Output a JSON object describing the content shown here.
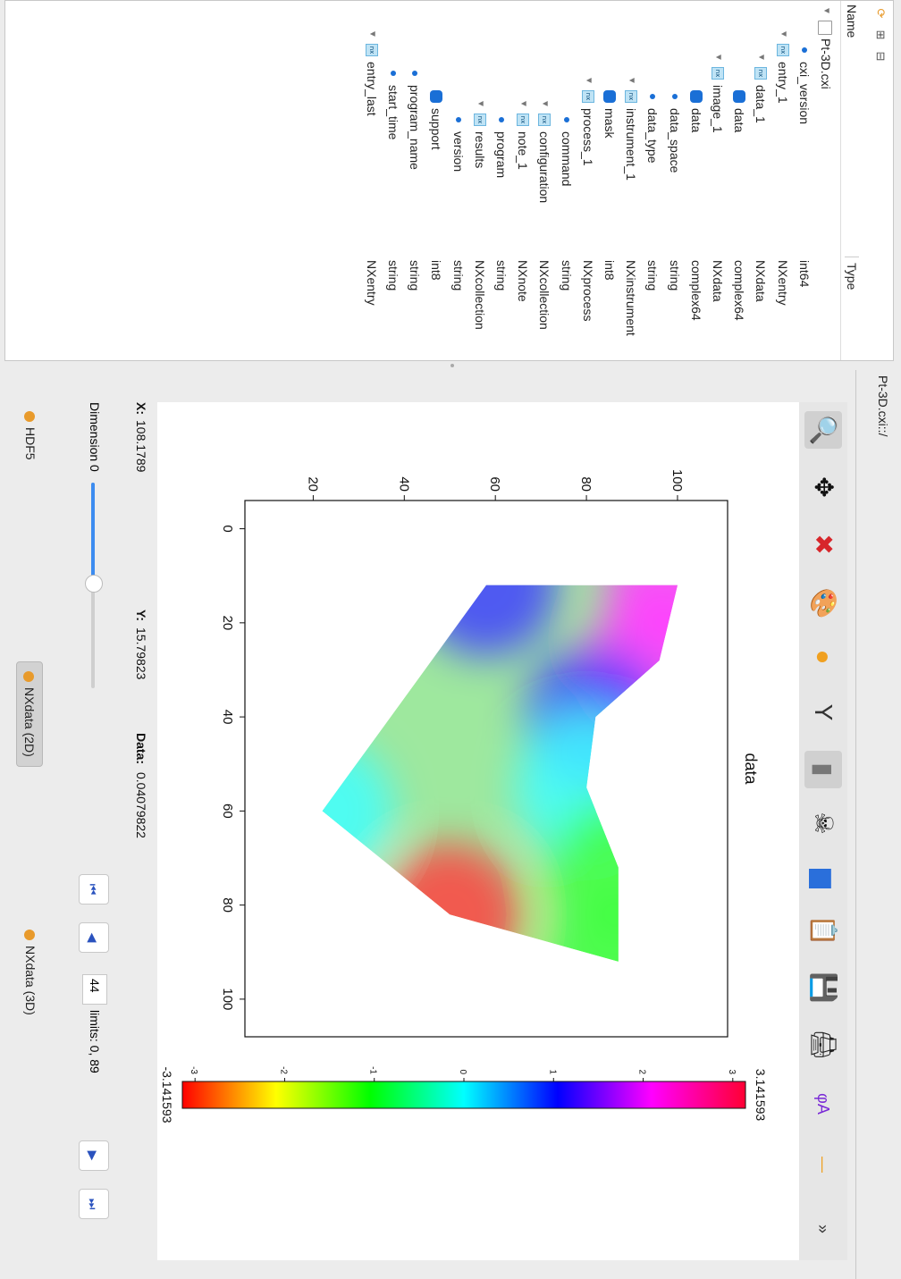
{
  "app": {
    "path_label": "Pt-3D.cxi::/"
  },
  "tree": {
    "tools": [
      "⟳",
      "⊞",
      "⊟"
    ],
    "columns": {
      "name": "Name",
      "type": "Type"
    },
    "items": [
      {
        "name": "Pt-3D.cxi",
        "type": "",
        "icon": "file-icon",
        "depth": 0,
        "toggle": "▼"
      },
      {
        "name": "cxi_version",
        "type": "int64",
        "icon": "attribute-icon",
        "depth": 1,
        "toggle": ""
      },
      {
        "name": "entry_1",
        "type": "NXentry",
        "icon": "nx-group-icon",
        "depth": 1,
        "toggle": "▼"
      },
      {
        "name": "data_1",
        "type": "NXdata",
        "icon": "nx-group-icon",
        "depth": 2,
        "toggle": "▼"
      },
      {
        "name": "data",
        "type": "complex64",
        "icon": "dataset-icon",
        "depth": 3,
        "toggle": ""
      },
      {
        "name": "image_1",
        "type": "NXdata",
        "icon": "nx-group-icon",
        "depth": 2,
        "toggle": "▼"
      },
      {
        "name": "data",
        "type": "complex64",
        "icon": "dataset-icon",
        "depth": 3,
        "toggle": ""
      },
      {
        "name": "data_space",
        "type": "string",
        "icon": "attribute-icon",
        "depth": 3,
        "toggle": ""
      },
      {
        "name": "data_type",
        "type": "string",
        "icon": "attribute-icon",
        "depth": 3,
        "toggle": ""
      },
      {
        "name": "instrument_1",
        "type": "NXinstrument",
        "icon": "nx-group-icon",
        "depth": 3,
        "toggle": "▼"
      },
      {
        "name": "mask",
        "type": "int8",
        "icon": "dataset-icon",
        "depth": 3,
        "toggle": ""
      },
      {
        "name": "process_1",
        "type": "NXprocess",
        "icon": "nx-group-icon",
        "depth": 3,
        "toggle": "▼"
      },
      {
        "name": "command",
        "type": "string",
        "icon": "attribute-icon",
        "depth": 4,
        "toggle": ""
      },
      {
        "name": "configuration",
        "type": "NXcollection",
        "icon": "nx-group-icon",
        "depth": 4,
        "toggle": "▼"
      },
      {
        "name": "note_1",
        "type": "NXnote",
        "icon": "nx-group-icon",
        "depth": 4,
        "toggle": "▼"
      },
      {
        "name": "program",
        "type": "string",
        "icon": "attribute-icon",
        "depth": 4,
        "toggle": ""
      },
      {
        "name": "results",
        "type": "NXcollection",
        "icon": "nx-group-icon",
        "depth": 4,
        "toggle": "▼"
      },
      {
        "name": "version",
        "type": "string",
        "icon": "attribute-icon",
        "depth": 4,
        "toggle": ""
      },
      {
        "name": "support",
        "type": "int8",
        "icon": "dataset-icon",
        "depth": 3,
        "toggle": ""
      },
      {
        "name": "program_name",
        "type": "string",
        "icon": "attribute-icon",
        "depth": 2,
        "toggle": ""
      },
      {
        "name": "start_time",
        "type": "string",
        "icon": "attribute-icon",
        "depth": 2,
        "toggle": ""
      },
      {
        "name": "entry_last",
        "type": "NXentry",
        "icon": "nx-group-icon",
        "depth": 1,
        "toggle": "▼"
      }
    ]
  },
  "toolbar": {
    "items": [
      {
        "name": "zoom-icon",
        "glyph": "🔍"
      },
      {
        "name": "pan-icon",
        "glyph": "✥"
      },
      {
        "name": "reset-zoom-icon",
        "glyph": "✖"
      },
      {
        "name": "colormap-icon",
        "glyph": "🎨"
      },
      {
        "name": "aspect-ratio-icon",
        "glyph": "●"
      },
      {
        "name": "y-axis-icon",
        "glyph": "Y"
      },
      {
        "name": "colorbar-toggle-icon",
        "glyph": "▮"
      },
      {
        "name": "mask-icon",
        "glyph": "☠"
      },
      {
        "name": "histogram-icon",
        "glyph": "▆"
      },
      {
        "name": "copy-icon",
        "glyph": "📋"
      },
      {
        "name": "save-icon",
        "glyph": "💾"
      },
      {
        "name": "print-icon",
        "glyph": "🖨"
      },
      {
        "name": "complex-mode-icon",
        "glyph": "φA"
      },
      {
        "name": "profile-icon",
        "glyph": "—"
      },
      {
        "name": "more-icon",
        "glyph": "»"
      }
    ]
  },
  "chart_data": {
    "type": "heatmap",
    "title": "data",
    "xlabel": "",
    "ylabel": "",
    "xlim": [
      -6,
      108
    ],
    "ylim": [
      5,
      111
    ],
    "x_ticks": [
      0,
      20,
      40,
      60,
      80,
      100
    ],
    "y_ticks": [
      20,
      40,
      60,
      80,
      100
    ],
    "grid": false,
    "colormap": "hsv (phase)",
    "colorbar": {
      "min_label": "-3.141593",
      "max_label": "3.141593",
      "ticks": [
        "-3",
        "-2",
        "-1",
        "0",
        "1",
        "2",
        "3"
      ],
      "colors": [
        "#ff0000",
        "#ffff00",
        "#00ff00",
        "#00ffff",
        "#0000ff",
        "#ff00ff",
        "#ff0033"
      ]
    },
    "region": [
      {
        "x": 12,
        "y": 100,
        "phase": 2.0
      },
      {
        "x": 28,
        "y": 96,
        "phase": 1.8
      },
      {
        "x": 40,
        "y": 82,
        "phase": 1.4
      },
      {
        "x": 55,
        "y": 80,
        "phase": -0.2
      },
      {
        "x": 72,
        "y": 87,
        "phase": -1.2
      },
      {
        "x": 92,
        "y": 87,
        "phase": -1.5
      },
      {
        "x": 82,
        "y": 50,
        "phase": -2.9
      },
      {
        "x": 60,
        "y": 22,
        "phase": -0.1
      },
      {
        "x": 12,
        "y": 58,
        "phase": 1.5
      }
    ]
  },
  "coords": {
    "x_label": "X:",
    "x_value": "108.1789",
    "y_label": "Y:",
    "y_value": "15.79823",
    "data_label": "Data:",
    "data_value": "0.04079822"
  },
  "dimension": {
    "label": "Dimension 0",
    "value": "44",
    "limits": "limits: 0, 89",
    "slider_fraction": 0.49,
    "buttons": [
      "⏮",
      "◀",
      "▶",
      "⏭"
    ]
  },
  "tabs": [
    {
      "label": "HDF5",
      "active": false
    },
    {
      "label": "NXdata (2D)",
      "active": true
    },
    {
      "label": "NXdata (3D)",
      "active": false
    }
  ],
  "colors": {
    "accent": "#2a6fdb",
    "slider": "#3c8cf0"
  }
}
